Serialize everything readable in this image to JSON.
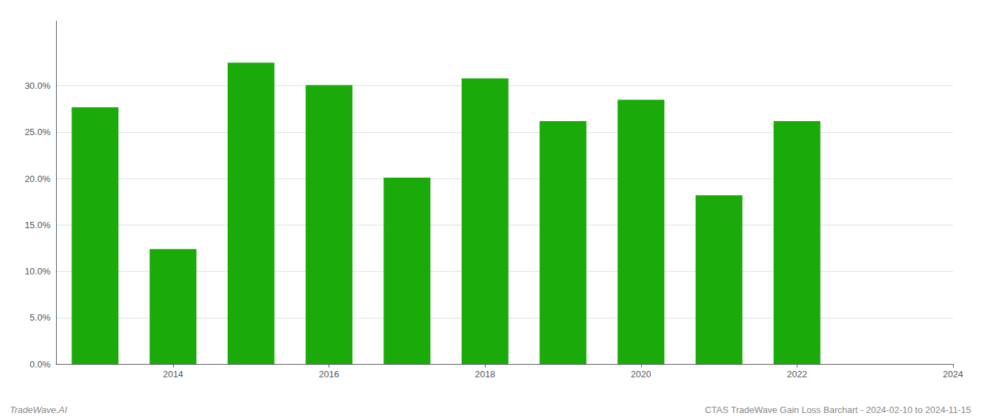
{
  "chart_data": {
    "type": "bar",
    "x": [
      2013,
      2014,
      2015,
      2016,
      2017,
      2018,
      2019,
      2020,
      2021,
      2022
    ],
    "values": [
      0.277,
      0.124,
      0.325,
      0.301,
      0.201,
      0.308,
      0.262,
      0.285,
      0.182,
      0.262
    ],
    "color": "#1aab0a",
    "xlim": [
      2012.5,
      2024
    ],
    "xticks": [
      2014,
      2016,
      2018,
      2020,
      2022,
      2024
    ],
    "ylim": [
      0.0,
      0.37
    ],
    "yticks": [
      {
        "value": 0.0,
        "label": "0.0%"
      },
      {
        "value": 0.05,
        "label": "5.0%"
      },
      {
        "value": 0.1,
        "label": "10.0%"
      },
      {
        "value": 0.15,
        "label": "15.0%"
      },
      {
        "value": 0.2,
        "label": "20.0%"
      },
      {
        "value": 0.25,
        "label": "25.0%"
      },
      {
        "value": 0.3,
        "label": "30.0%"
      }
    ],
    "grid": true,
    "annotations": [
      "TradeWave.AI",
      "CTAS TradeWave Gain Loss Barchart - 2024-02-10 to 2024-11-15"
    ]
  }
}
